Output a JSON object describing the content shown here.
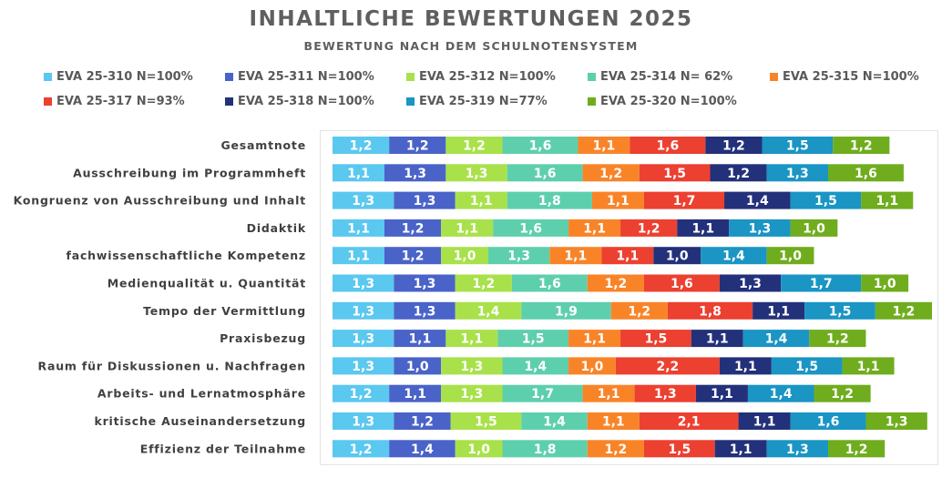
{
  "chart_data": {
    "type": "bar",
    "orientation": "horizontal-stacked",
    "title": "INHALTLICHE BEWERTUNGEN 2025",
    "subtitle": "BEWERTUNG NACH DEM SCHULNOTENSYSTEM",
    "legend_position": "top",
    "grid": false,
    "categories": [
      "Gesamtnote",
      "Ausschreibung im Programmheft",
      "Kongruenz von Ausschreibung und Inhalt",
      "Didaktik",
      "fachwissenschaftliche Kompetenz",
      "Medienqualität u. Quantität",
      "Tempo der Vermittlung",
      "Praxisbezug",
      "Raum für Diskussionen u. Nachfragen",
      "Arbeits- und Lernatmosphäre",
      "kritische Auseinandersetzung",
      "Effizienz der Teilnahme"
    ],
    "series": [
      {
        "name": "EVA 25-310 N=100%",
        "color": "#5bc8f0",
        "values": [
          1.2,
          1.1,
          1.3,
          1.1,
          1.1,
          1.3,
          1.3,
          1.3,
          1.3,
          1.2,
          1.3,
          1.2
        ]
      },
      {
        "name": "EVA 25-311 N=100%",
        "color": "#4a63c8",
        "values": [
          1.2,
          1.3,
          1.3,
          1.2,
          1.2,
          1.3,
          1.3,
          1.1,
          1.0,
          1.1,
          1.2,
          1.4
        ]
      },
      {
        "name": "EVA 25-312 N=100%",
        "color": "#a8e14a",
        "values": [
          1.2,
          1.3,
          1.1,
          1.1,
          1.0,
          1.2,
          1.4,
          1.1,
          1.3,
          1.3,
          1.5,
          1.0
        ]
      },
      {
        "name": "EVA 25-314 N= 62%",
        "color": "#5ecfad",
        "values": [
          1.6,
          1.6,
          1.8,
          1.6,
          1.3,
          1.6,
          1.9,
          1.5,
          1.4,
          1.7,
          1.4,
          1.8
        ]
      },
      {
        "name": "EVA 25-315 N=100%",
        "color": "#f98428",
        "values": [
          1.1,
          1.2,
          1.1,
          1.1,
          1.1,
          1.2,
          1.2,
          1.1,
          1.0,
          1.1,
          1.1,
          1.2
        ]
      },
      {
        "name": "EVA 25-317 N=93%",
        "color": "#ec4030",
        "values": [
          1.6,
          1.5,
          1.7,
          1.2,
          1.1,
          1.6,
          1.8,
          1.5,
          2.2,
          1.3,
          2.1,
          1.5
        ]
      },
      {
        "name": "EVA 25-318 N=100%",
        "color": "#23317a",
        "values": [
          1.2,
          1.2,
          1.4,
          1.1,
          1.0,
          1.3,
          1.1,
          1.1,
          1.1,
          1.1,
          1.1,
          1.1
        ]
      },
      {
        "name": "EVA 25-319 N=77%",
        "color": "#1a95c4",
        "values": [
          1.5,
          1.3,
          1.5,
          1.3,
          1.4,
          1.7,
          1.5,
          1.4,
          1.5,
          1.4,
          1.6,
          1.3
        ]
      },
      {
        "name": "EVA 25-320 N=100%",
        "color": "#6fad1e",
        "values": [
          1.2,
          1.6,
          1.1,
          1.0,
          1.0,
          1.0,
          1.2,
          1.2,
          1.1,
          1.2,
          1.3,
          1.2
        ]
      }
    ]
  }
}
